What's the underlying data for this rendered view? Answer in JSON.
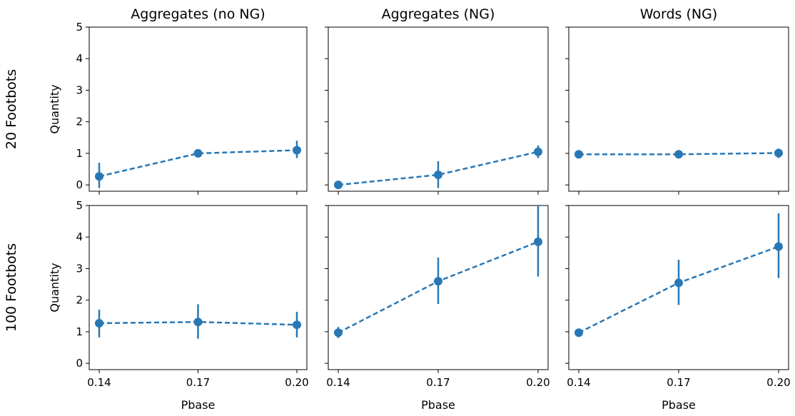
{
  "chart_data": {
    "type": "line",
    "columns": [
      "Aggregates (no NG)",
      "Aggregates (NG)",
      "Words (NG)"
    ],
    "rows": [
      "20 Footbots",
      "100 Footbots"
    ],
    "x": [
      "0.14",
      "0.17",
      "0.20"
    ],
    "x_values": [
      0.14,
      0.17,
      0.2
    ],
    "xlabel": "Pbase",
    "ylabel": "Quantity",
    "ylim": [
      -0.2,
      5
    ],
    "yticks": [
      "0",
      "1",
      "2",
      "3",
      "4",
      "5"
    ],
    "grid": false,
    "line_color": "#2878b5",
    "line_style": "dashed",
    "panels": [
      {
        "row": "20 Footbots",
        "column": "Aggregates (no NG)",
        "values": [
          0.27,
          1.0,
          1.1
        ],
        "err_low": [
          -0.1,
          0.95,
          0.85
        ],
        "err_high": [
          0.7,
          1.05,
          1.4
        ]
      },
      {
        "row": "20 Footbots",
        "column": "Aggregates (NG)",
        "values": [
          0.0,
          0.32,
          1.05
        ],
        "err_low": [
          0.0,
          -0.1,
          0.85
        ],
        "err_high": [
          0.0,
          0.75,
          1.25
        ]
      },
      {
        "row": "20 Footbots",
        "column": "Words (NG)",
        "values": [
          0.97,
          0.97,
          1.01
        ],
        "err_low": [
          0.93,
          0.93,
          0.85
        ],
        "err_high": [
          1.01,
          1.01,
          1.15
        ]
      },
      {
        "row": "100 Footbots",
        "column": "Aggregates (no NG)",
        "values": [
          1.27,
          1.31,
          1.22
        ],
        "err_low": [
          0.82,
          0.78,
          0.82
        ],
        "err_high": [
          1.7,
          1.87,
          1.63
        ]
      },
      {
        "row": "100 Footbots",
        "column": "Aggregates (NG)",
        "values": [
          0.97,
          2.6,
          3.85
        ],
        "err_low": [
          0.8,
          1.88,
          2.75
        ],
        "err_high": [
          1.15,
          3.35,
          5.0
        ]
      },
      {
        "row": "100 Footbots",
        "column": "Words (NG)",
        "values": [
          0.97,
          2.55,
          3.7
        ],
        "err_low": [
          0.93,
          1.85,
          2.7
        ],
        "err_high": [
          1.01,
          3.28,
          4.75
        ]
      }
    ]
  }
}
